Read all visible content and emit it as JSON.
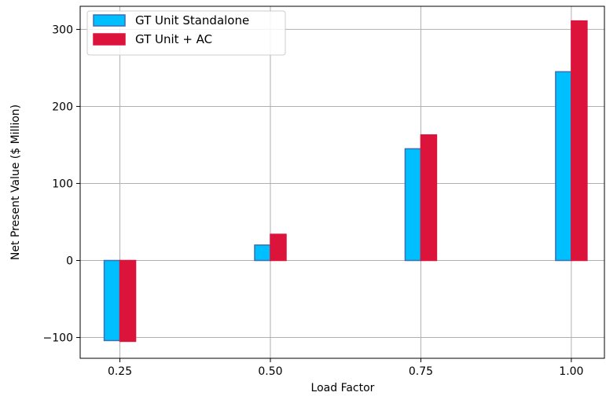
{
  "chart_data": {
    "type": "bar",
    "title": "",
    "xlabel": "Load Factor",
    "ylabel": "Net Present Value ($ Million)",
    "x": [
      0.25,
      0.5,
      0.75,
      1.0
    ],
    "x_tick_labels": [
      "0.25",
      "0.50",
      "0.75",
      "1.00"
    ],
    "y_ticks": [
      -100,
      0,
      100,
      200,
      300
    ],
    "y_tick_labels": [
      "−100",
      "0",
      "100",
      "200",
      "300"
    ],
    "xlim": [
      0.184,
      1.055
    ],
    "ylim": [
      -127,
      330
    ],
    "grid": true,
    "legend_position": "top-left",
    "series": [
      {
        "name": "GT Unit Standalone",
        "values": [
          -104,
          20,
          145,
          245
        ],
        "color": "#00bfff",
        "edge_color": "#3a6fb0"
      },
      {
        "name": "GT Unit + AC",
        "values": [
          -105,
          34,
          163,
          311
        ],
        "color": "#dc143c",
        "edge_color": "#dc143c"
      }
    ]
  }
}
